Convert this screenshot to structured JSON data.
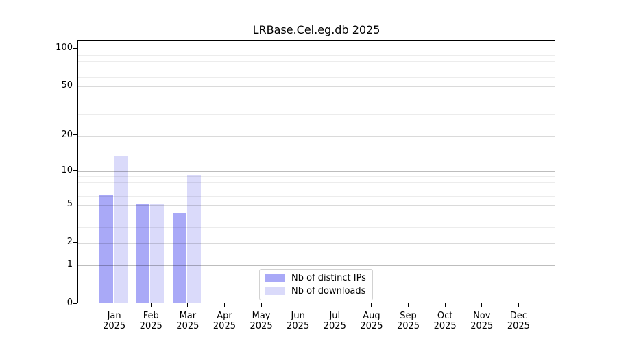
{
  "title": "LRBase.Cel.eg.db 2025",
  "chart_data": {
    "type": "bar",
    "categories": [
      "Jan",
      "Feb",
      "Mar",
      "Apr",
      "May",
      "Jun",
      "Jul",
      "Aug",
      "Sep",
      "Oct",
      "Nov",
      "Dec"
    ],
    "x_sub_label": "2025",
    "series": [
      {
        "name": "Nb of distinct IPs",
        "color": "#a9a9f7",
        "values": [
          6,
          5,
          4,
          0,
          0,
          0,
          0,
          0,
          0,
          0,
          0,
          0
        ]
      },
      {
        "name": "Nb of downloads",
        "color": "#dadafa",
        "values": [
          13,
          5,
          9,
          0,
          0,
          0,
          0,
          0,
          0,
          0,
          0,
          0
        ]
      }
    ],
    "title": "LRBase.Cel.eg.db 2025",
    "xlabel": "",
    "ylabel": "",
    "y_scale": "log1p",
    "ylim": [
      0,
      115
    ],
    "y_ticks": [
      0,
      1,
      2,
      5,
      10,
      20,
      50,
      100
    ],
    "y_gridlines_major": [
      1,
      10,
      100
    ],
    "y_gridlines_medium": [
      2,
      5,
      20,
      50
    ],
    "y_gridlines_minor": [
      3,
      4,
      6,
      7,
      8,
      9,
      30,
      40,
      60,
      70,
      80,
      90
    ],
    "grid": true,
    "legend": {
      "position": "bottom-center",
      "entries": [
        "Nb of distinct IPs",
        "Nb of downloads"
      ]
    }
  }
}
